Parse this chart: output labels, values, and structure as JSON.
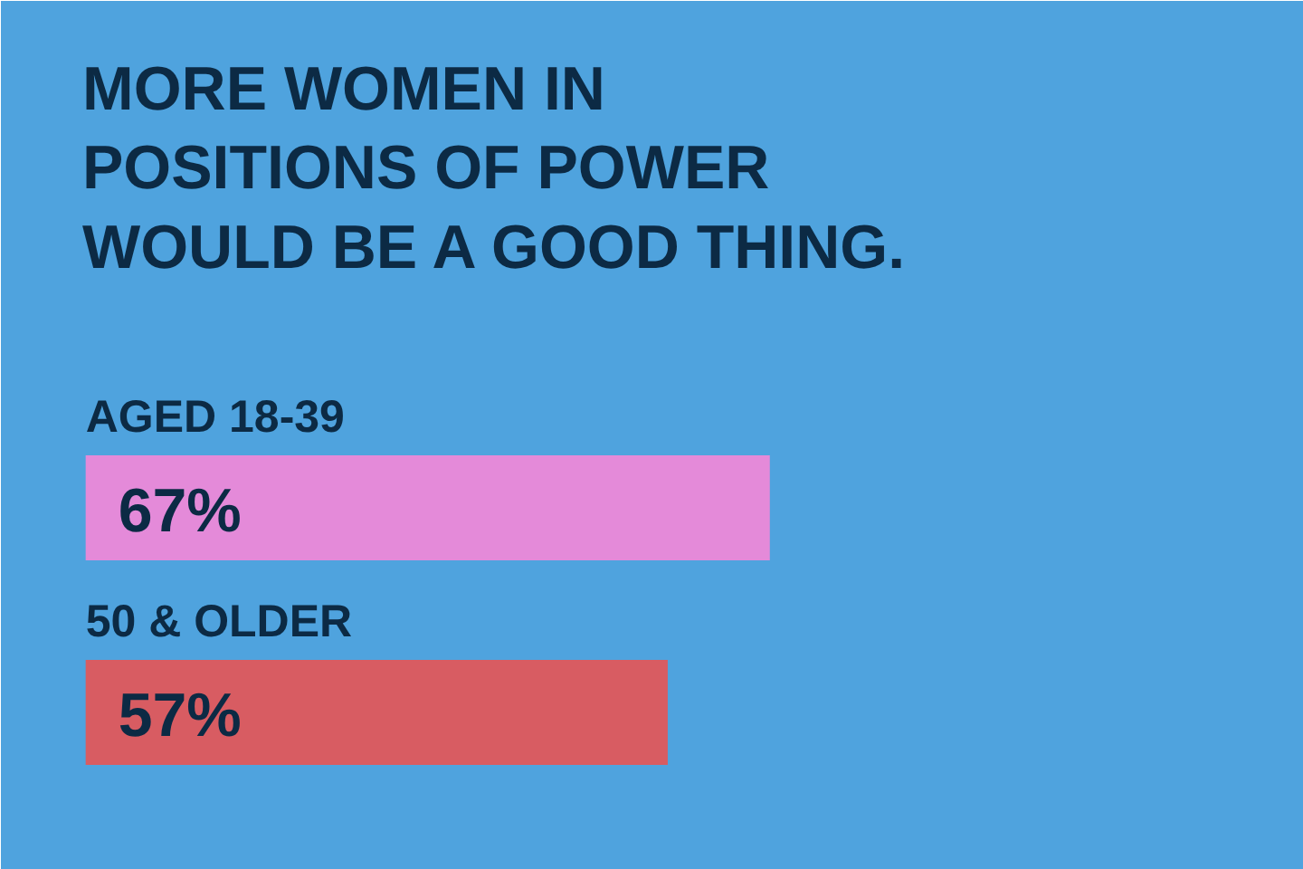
{
  "chart_data": {
    "type": "bar",
    "orientation": "horizontal",
    "title": "MORE WOMEN IN\nPOSITIONS OF POWER\nWOULD BE A GOOD THING.",
    "categories": [
      "AGED 18-39",
      "50 & OLDER"
    ],
    "values": [
      67,
      57
    ],
    "colors": [
      "#e48ad9",
      "#d85c62"
    ],
    "value_labels": [
      "67%",
      "57%"
    ],
    "xlim": [
      -8.3,
      119.3
    ],
    "tick_labels": false,
    "grid": false
  }
}
